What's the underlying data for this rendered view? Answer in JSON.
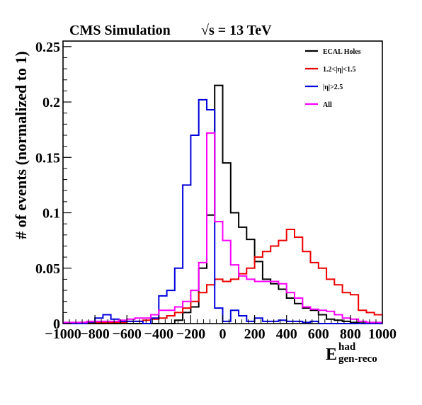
{
  "chart_data": {
    "type": "line",
    "style": "step-histogram",
    "title": "CMS Simulation",
    "subtitle": "√s = 13 TeV",
    "ylabel": "# of events (normalized to 1)",
    "xlabel_main": "E",
    "xlabel_sup": "had",
    "xlabel_sub": "gen-reco",
    "xlim": [
      -1000,
      1000
    ],
    "ylim": [
      0,
      0.255
    ],
    "bin_width": 50,
    "x_ticks": [
      -1000,
      -800,
      -600,
      -400,
      -200,
      0,
      200,
      400,
      600,
      800,
      1000
    ],
    "x_tick_labels": [
      "−1000",
      "−800",
      "−600",
      "−400",
      "−200",
      "0",
      "200",
      "400",
      "600",
      "800",
      "1000"
    ],
    "y_ticks": [
      0,
      0.05,
      0.1,
      0.15,
      0.2,
      0.25
    ],
    "y_tick_labels": [
      "0",
      "0.05",
      "0.1",
      "0.15",
      "0.2",
      "0.25"
    ],
    "legend_position": "top-right",
    "series": [
      {
        "name": "ECAL Holes",
        "color": "#000000",
        "values": [
          0,
          0,
          0,
          0,
          0,
          0,
          0,
          0,
          0,
          0,
          0,
          0,
          0,
          0,
          0.003,
          0.01,
          0.015,
          0.05,
          0.098,
          0.215,
          0.145,
          0.1,
          0.087,
          0.076,
          0.056,
          0.04,
          0.036,
          0.031,
          0.023,
          0.018,
          0.014,
          0.012,
          0.008,
          0.004,
          0.003,
          0.002,
          0.001,
          0.0005,
          0.0003,
          0.0002
        ]
      },
      {
        "name": "1.2<|η|<1.5",
        "color": "#ee0000",
        "values": [
          0.0005,
          0.0005,
          0.001,
          0.001,
          0.001,
          0.001,
          0.001,
          0.001,
          0.002,
          0.002,
          0.003,
          0.004,
          0.005,
          0.007,
          0.01,
          0.014,
          0.02,
          0.028,
          0.035,
          0.04,
          0.038,
          0.04,
          0.045,
          0.05,
          0.06,
          0.065,
          0.07,
          0.075,
          0.085,
          0.078,
          0.065,
          0.055,
          0.05,
          0.04,
          0.035,
          0.028,
          0.026,
          0.012,
          0.01,
          0.008
        ]
      },
      {
        "name": "|η|>2.5",
        "color": "#0000dd",
        "values": [
          0,
          0,
          0,
          0.0015,
          0.005,
          0.008,
          0.004,
          0.002,
          0.002,
          0.002,
          0,
          0.005,
          0.025,
          0.03,
          0.05,
          0.125,
          0.17,
          0.202,
          0.193,
          0.014,
          0.002,
          0.012,
          0.007,
          0.002,
          0.005,
          0.002,
          0.002,
          0.003,
          0.002,
          0.002,
          0.001,
          0.002,
          0,
          0,
          0,
          0,
          0,
          0,
          0,
          0
        ]
      },
      {
        "name": "All",
        "color": "#ff00ff",
        "values": [
          0.001,
          0.001,
          0.001,
          0.002,
          0.002,
          0.002,
          0.002,
          0.003,
          0.004,
          0.005,
          0.005,
          0.008,
          0.012,
          0.012,
          0.015,
          0.02,
          0.03,
          0.055,
          0.172,
          0.092,
          0.075,
          0.053,
          0.043,
          0.04,
          0.038,
          0.038,
          0.038,
          0.036,
          0.028,
          0.023,
          0.015,
          0.013,
          0.012,
          0.011,
          0.008,
          0.005,
          0.004,
          0.002,
          0.001,
          0.001
        ]
      }
    ]
  }
}
